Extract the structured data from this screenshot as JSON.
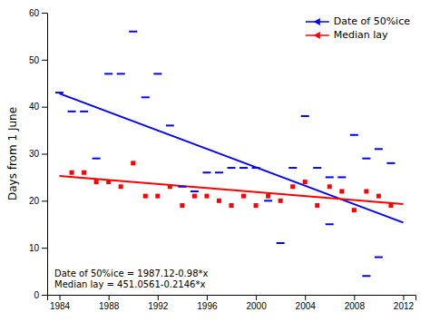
{
  "chart_data": {
    "type": "scatter",
    "ylabel": "Days from 1 June",
    "xlim": [
      1983,
      2013
    ],
    "ylim": [
      0,
      60
    ],
    "xticks": [
      1984,
      1988,
      1992,
      1996,
      2000,
      2004,
      2008,
      2012
    ],
    "yticks": [
      0,
      10,
      20,
      30,
      40,
      50,
      60
    ],
    "grid": false,
    "legend": "upper-right",
    "series": [
      {
        "type": "scatter",
        "marker": "dash",
        "color": "#0000FF",
        "x": [
          1984,
          1985,
          1986,
          1987,
          1988,
          1989,
          1990,
          1991,
          1992,
          1993,
          1994,
          1995,
          1996,
          1997,
          1998,
          1999,
          2000,
          2001,
          2002,
          2003,
          2004,
          2005,
          2006,
          2007,
          2008,
          2009,
          2010,
          2011,
          2009,
          2006,
          2010
        ],
        "values": [
          43,
          39,
          39,
          29,
          47,
          47,
          56,
          42,
          47,
          36,
          23,
          22,
          26,
          26,
          27,
          27,
          27,
          20,
          11,
          27,
          38,
          27,
          25,
          25,
          34,
          29,
          31,
          28,
          4,
          15,
          8
        ]
      },
      {
        "type": "scatter",
        "marker": "square",
        "color": "#FF0000",
        "x": [
          1985,
          1986,
          1987,
          1988,
          1989,
          1990,
          1991,
          1992,
          1993,
          1994,
          1995,
          1996,
          1997,
          1998,
          1999,
          2000,
          2001,
          2002,
          2003,
          2004,
          2005,
          2006,
          2007,
          2008,
          2009,
          2010,
          2011
        ],
        "values": [
          26,
          26,
          24,
          24,
          23,
          28,
          21,
          21,
          23,
          19,
          21,
          21,
          20,
          19,
          21,
          19,
          21,
          20,
          23,
          24,
          19,
          23,
          22,
          18,
          22,
          21,
          19
        ]
      },
      {
        "name": "Date of 50%ice",
        "type": "line",
        "line_style": "solid",
        "marker": "triangle-left",
        "color": "#0000FF",
        "x": [
          1984,
          2012
        ],
        "values": [
          42.8,
          15.36
        ]
      },
      {
        "name": "Median lay",
        "type": "line",
        "line_style": "solid",
        "marker": "triangle-left",
        "color": "#FF0000",
        "x": [
          1984,
          2012
        ],
        "values": [
          25.2897,
          19.2809
        ]
      }
    ],
    "annotations": [
      "Date of 50%ice = 1987.12-0.98*x",
      "Median lay = 451.0561-0.2146*x"
    ]
  }
}
